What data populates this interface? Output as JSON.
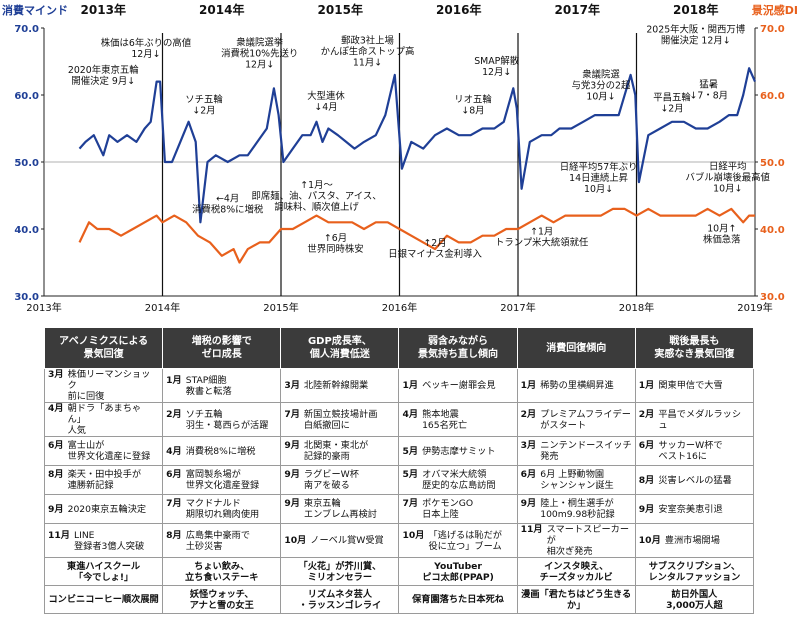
{
  "chart_data": {
    "type": "line",
    "left_axis_title": "消費マインド",
    "right_axis_title": "景況感DI",
    "ylim_left": [
      30,
      70
    ],
    "ylim_right": [
      30,
      70
    ],
    "y_ticks": [
      "30.0",
      "40.0",
      "50.0",
      "60.0",
      "70.0"
    ],
    "x_tick_labels": [
      "2013年",
      "2014年",
      "2015年",
      "2016年",
      "2017年",
      "2018年",
      "2019年"
    ],
    "top_year_labels": [
      "2013年",
      "2014年",
      "2015年",
      "2016年",
      "2017年",
      "2018年"
    ],
    "grid": "horizontal at 50",
    "colors": {
      "mind": "#1f3f96",
      "di": "#e8601c"
    },
    "series": [
      {
        "key": "mind",
        "points": [
          [
            2013.3,
            52
          ],
          [
            2013.35,
            53
          ],
          [
            2013.42,
            54
          ],
          [
            2013.5,
            51
          ],
          [
            2013.55,
            54
          ],
          [
            2013.62,
            53
          ],
          [
            2013.7,
            54
          ],
          [
            2013.78,
            53
          ],
          [
            2013.85,
            55
          ],
          [
            2013.9,
            56
          ],
          [
            2013.95,
            62
          ],
          [
            2013.98,
            62
          ],
          [
            2014.02,
            50
          ],
          [
            2014.08,
            50
          ],
          [
            2014.15,
            53
          ],
          [
            2014.22,
            56
          ],
          [
            2014.28,
            53
          ],
          [
            2014.32,
            41
          ],
          [
            2014.38,
            50
          ],
          [
            2014.45,
            51
          ],
          [
            2014.55,
            50
          ],
          [
            2014.65,
            51
          ],
          [
            2014.72,
            51
          ],
          [
            2014.8,
            53
          ],
          [
            2014.88,
            55
          ],
          [
            2014.94,
            61
          ],
          [
            2014.98,
            57
          ],
          [
            2015.02,
            50
          ],
          [
            2015.1,
            52
          ],
          [
            2015.18,
            54
          ],
          [
            2015.25,
            54
          ],
          [
            2015.3,
            56
          ],
          [
            2015.35,
            53
          ],
          [
            2015.4,
            55
          ],
          [
            2015.48,
            54
          ],
          [
            2015.55,
            53
          ],
          [
            2015.62,
            52
          ],
          [
            2015.7,
            53
          ],
          [
            2015.8,
            54
          ],
          [
            2015.88,
            57
          ],
          [
            2015.96,
            63
          ],
          [
            2015.99,
            56
          ],
          [
            2016.02,
            49
          ],
          [
            2016.1,
            53
          ],
          [
            2016.2,
            52
          ],
          [
            2016.3,
            54
          ],
          [
            2016.4,
            55
          ],
          [
            2016.5,
            54
          ],
          [
            2016.6,
            54
          ],
          [
            2016.7,
            55
          ],
          [
            2016.8,
            55
          ],
          [
            2016.88,
            56
          ],
          [
            2016.96,
            61
          ],
          [
            2016.99,
            58
          ],
          [
            2017.03,
            46
          ],
          [
            2017.1,
            53
          ],
          [
            2017.2,
            54
          ],
          [
            2017.28,
            54
          ],
          [
            2017.35,
            55
          ],
          [
            2017.45,
            55
          ],
          [
            2017.55,
            56
          ],
          [
            2017.65,
            57
          ],
          [
            2017.75,
            57
          ],
          [
            2017.85,
            57
          ],
          [
            2017.95,
            63
          ],
          [
            2017.99,
            60
          ],
          [
            2018.02,
            47
          ],
          [
            2018.1,
            54
          ],
          [
            2018.2,
            55
          ],
          [
            2018.3,
            56
          ],
          [
            2018.4,
            56
          ],
          [
            2018.5,
            55
          ],
          [
            2018.6,
            55
          ],
          [
            2018.7,
            56
          ],
          [
            2018.78,
            57
          ],
          [
            2018.85,
            57
          ],
          [
            2018.9,
            60
          ],
          [
            2018.95,
            64
          ],
          [
            2019.0,
            62
          ]
        ]
      },
      {
        "key": "di",
        "points": [
          [
            2013.3,
            38
          ],
          [
            2013.38,
            41
          ],
          [
            2013.45,
            40
          ],
          [
            2013.55,
            40
          ],
          [
            2013.65,
            39
          ],
          [
            2013.75,
            40
          ],
          [
            2013.85,
            41
          ],
          [
            2013.95,
            42
          ],
          [
            2014.0,
            41
          ],
          [
            2014.1,
            42
          ],
          [
            2014.2,
            41
          ],
          [
            2014.3,
            39
          ],
          [
            2014.4,
            38
          ],
          [
            2014.5,
            36
          ],
          [
            2014.6,
            37
          ],
          [
            2014.65,
            35
          ],
          [
            2014.72,
            37
          ],
          [
            2014.82,
            38
          ],
          [
            2014.9,
            38
          ],
          [
            2015.0,
            40
          ],
          [
            2015.1,
            40
          ],
          [
            2015.2,
            41
          ],
          [
            2015.3,
            42
          ],
          [
            2015.4,
            41
          ],
          [
            2015.5,
            41
          ],
          [
            2015.6,
            41
          ],
          [
            2015.7,
            40
          ],
          [
            2015.8,
            41
          ],
          [
            2015.9,
            41
          ],
          [
            2016.0,
            40
          ],
          [
            2016.1,
            39
          ],
          [
            2016.2,
            38
          ],
          [
            2016.3,
            37
          ],
          [
            2016.4,
            39
          ],
          [
            2016.5,
            38
          ],
          [
            2016.6,
            38
          ],
          [
            2016.7,
            39
          ],
          [
            2016.8,
            39
          ],
          [
            2016.9,
            40
          ],
          [
            2017.0,
            40
          ],
          [
            2017.1,
            41
          ],
          [
            2017.2,
            42
          ],
          [
            2017.3,
            41
          ],
          [
            2017.4,
            42
          ],
          [
            2017.5,
            42
          ],
          [
            2017.6,
            42
          ],
          [
            2017.7,
            42
          ],
          [
            2017.8,
            43
          ],
          [
            2017.9,
            43
          ],
          [
            2018.0,
            42
          ],
          [
            2018.1,
            43
          ],
          [
            2018.2,
            42
          ],
          [
            2018.3,
            42
          ],
          [
            2018.4,
            42
          ],
          [
            2018.5,
            42
          ],
          [
            2018.6,
            43
          ],
          [
            2018.7,
            42
          ],
          [
            2018.8,
            43
          ],
          [
            2018.9,
            41
          ],
          [
            2018.95,
            42
          ],
          [
            2019.0,
            42
          ]
        ]
      }
    ],
    "annotations": [
      {
        "lines": [
          "2020年東京五輪",
          "開催決定 9月↓"
        ],
        "x": 2013.5,
        "y": 63.3
      },
      {
        "lines": [
          "株価は6年ぶりの高値",
          "12月↓"
        ],
        "x": 2013.86,
        "y": 67.3
      },
      {
        "lines": [
          "ソチ五輪",
          "↓2月"
        ],
        "x": 2014.35,
        "y": 58.9
      },
      {
        "lines": [
          "←4月",
          "消費税8%に増税"
        ],
        "x": 2014.55,
        "y": 44.1
      },
      {
        "lines": [
          "衆議院選挙",
          "消費税10%先送り",
          "12月↓"
        ],
        "x": 2014.82,
        "y": 67.4
      },
      {
        "lines": [
          "大型連休",
          "↓4月"
        ],
        "x": 2015.38,
        "y": 59.4
      },
      {
        "lines": [
          "↑1月～",
          "即席麺、油、パスタ、アイス、",
          "調味料、順次値上げ"
        ],
        "x": 2015.3,
        "y": 46.1
      },
      {
        "lines": [
          "郵政3社上場",
          "かんぽ生命ストップ高",
          "11月↓"
        ],
        "x": 2015.73,
        "y": 67.7
      },
      {
        "lines": [
          "↑6月",
          "世界同時株安"
        ],
        "x": 2015.46,
        "y": 38.2
      },
      {
        "lines": [
          "↑2月",
          "日銀マイナス金利導入"
        ],
        "x": 2016.3,
        "y": 37.5
      },
      {
        "lines": [
          "SMAP解散",
          "12月↓"
        ],
        "x": 2016.82,
        "y": 64.6
      },
      {
        "lines": [
          "リオ五輪",
          "↓8月"
        ],
        "x": 2016.62,
        "y": 58.9
      },
      {
        "lines": [
          "↑1月",
          "トランプ米大統領就任"
        ],
        "x": 2017.2,
        "y": 39.2
      },
      {
        "lines": [
          "衆議院選",
          "与党3分の2超",
          "10月↓"
        ],
        "x": 2017.7,
        "y": 62.6
      },
      {
        "lines": [
          "日経平均57年ぶり",
          "14日連続上昇",
          "10月↓"
        ],
        "x": 2017.68,
        "y": 48.8
      },
      {
        "lines": [
          "平昌五輪",
          "↓2月"
        ],
        "x": 2018.3,
        "y": 59.2
      },
      {
        "lines": [
          "猛暑",
          "↓7・8月"
        ],
        "x": 2018.61,
        "y": 61.1
      },
      {
        "lines": [
          "2025年大阪・関西万博",
          "開催決定 12月↓"
        ],
        "x": 2018.5,
        "y": 69.3
      },
      {
        "lines": [
          "日経平均",
          "バブル崩壊後最高値",
          "10月↓"
        ],
        "x": 2018.77,
        "y": 48.9
      },
      {
        "lines": [
          "10月↑",
          "株価急落"
        ],
        "x": 2018.72,
        "y": 39.6
      }
    ]
  },
  "table": {
    "headers": [
      "アベノミクスによる\n景気回復",
      "増税の影響で\nゼロ成長",
      "GDP成長率、\n個人消費低迷",
      "弱含みながら\n景気持ち直し傾向",
      "消費回復傾向",
      "戦後最長も\n実感なき景気回復"
    ],
    "rows": [
      [
        [
          "3月",
          "株価リーマンショック\n前に回復"
        ],
        [
          "1月",
          "STAP細胞\n教書と転落"
        ],
        [
          "3月",
          "北陸新幹線開業"
        ],
        [
          "1月",
          "ベッキー謝罪会見"
        ],
        [
          "1月",
          "稀勢の里横綱昇進"
        ],
        [
          "1月",
          "関東甲信で大雪"
        ]
      ],
      [
        [
          "4月",
          "朝ドラ「あまちゃん」\n人気"
        ],
        [
          "2月",
          "ソチ五輪\n羽生・葛西らが活躍"
        ],
        [
          "7月",
          "新国立競技場計画\n白紙撤回に"
        ],
        [
          "4月",
          "熊本地震\n165名死亡"
        ],
        [
          "2月",
          "プレミアムフライデー\nがスタート"
        ],
        [
          "2月",
          "平昌でメダルラッシュ"
        ]
      ],
      [
        [
          "6月",
          "富士山が\n世界文化遺産に登録"
        ],
        [
          "4月",
          "消費税8%に増税"
        ],
        [
          "9月",
          "北関東・東北が\n記録的豪雨"
        ],
        [
          "5月",
          "伊勢志摩サミット"
        ],
        [
          "3月",
          "ニンテンドースイッチ\n発売"
        ],
        [
          "6月",
          "サッカーW杯で\nベスト16に"
        ]
      ],
      [
        [
          "8月",
          "楽天・田中投手が\n連勝新記録"
        ],
        [
          "6月",
          "富岡製糸場が\n世界文化遺産登録"
        ],
        [
          "9月",
          "ラグビーW杯\n南アを破る"
        ],
        [
          "5月",
          "オバマ米大統領\n歴史的な広島訪問"
        ],
        [
          "6月",
          "6月 上野動物園\nシャンシャン誕生"
        ],
        [
          "8月",
          "災害レベルの猛暑"
        ]
      ],
      [
        [
          "9月",
          "2020東京五輪決定"
        ],
        [
          "7月",
          "マクドナルド\n期限切れ鶏肉使用"
        ],
        [
          "9月",
          "東京五輪\nエンブレム再検討"
        ],
        [
          "7月",
          "ポケモンGO\n日本上陸"
        ],
        [
          "9月",
          "陸上・桐生選手が\n100m9.98秒記録"
        ],
        [
          "9月",
          "安室奈美恵引退"
        ]
      ],
      [
        [
          "11月",
          "LINE\n登録者3億人突破"
        ],
        [
          "8月",
          "広島集中豪雨で\n土砂災害"
        ],
        [
          "10月",
          "ノーベル賞W受賞"
        ],
        [
          "10月",
          "「逃げるは恥だが\n役に立つ」ブーム"
        ],
        [
          "11月",
          "スマートスピーカーが\n相次ぎ発売"
        ],
        [
          "10月",
          "豊洲市場開場"
        ]
      ]
    ],
    "trends_row1": [
      "東進ハイスクール\n「今でしょ!」",
      "ちょい飲み、\n立ち食いステーキ",
      "「火花」が芥川賞、\nミリオンセラー",
      "YouTuber\nピコ太郎(PPAP)",
      "インスタ映え、\nチーズタッカルビ",
      "サブスクリプション、\nレンタルファッション"
    ],
    "trends_row2": [
      "コンビニコーヒー順次展開",
      "妖怪ウォッチ、\nアナと雪の女王",
      "リズムネタ芸人\n・ラッスンゴレライ",
      "保育園落ちた日本死ね",
      "漫画「君たちはどう生きるか」",
      "訪日外国人\n3,000万人超"
    ]
  }
}
